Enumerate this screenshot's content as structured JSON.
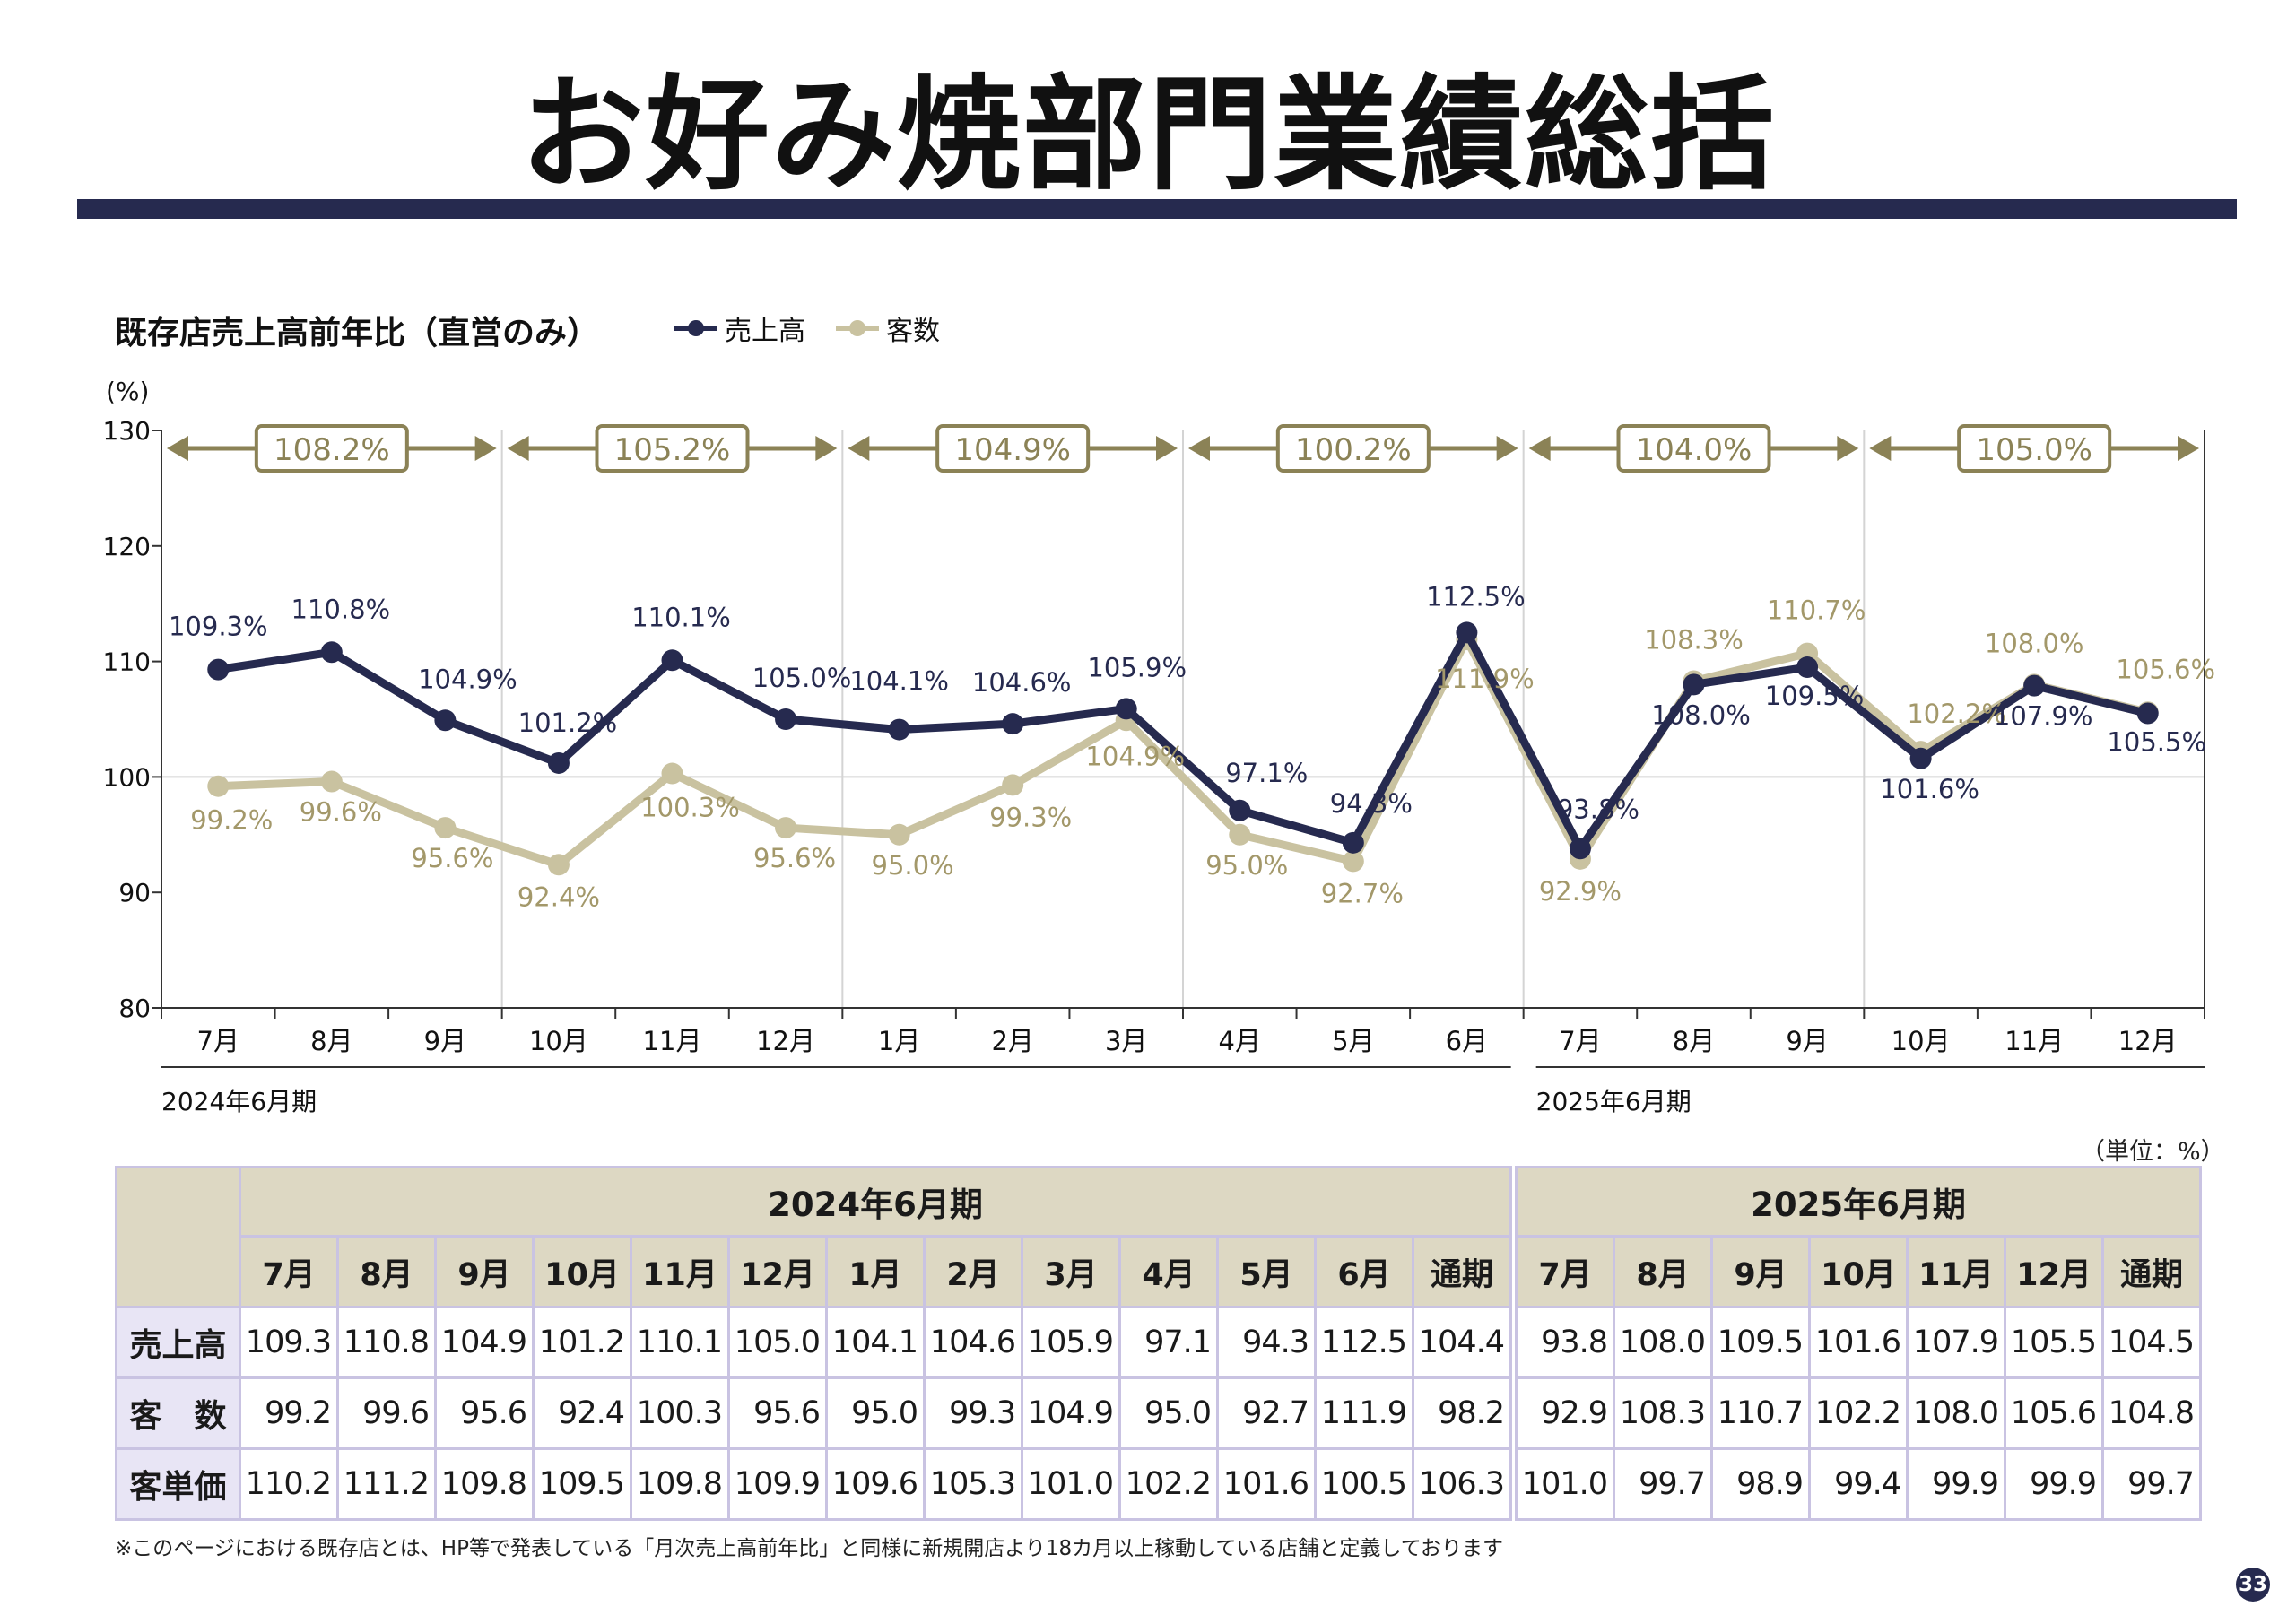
{
  "title": "お好み焼部門業績総括",
  "chart_heading": "既存店売上高前年比（直営のみ）",
  "colors": {
    "sales": "#262a4f",
    "customers": "#c9c2a0",
    "annotation": "#8b8256",
    "rule": "#262a4f"
  },
  "legend": [
    {
      "name": "売上高",
      "color": "#262a4f"
    },
    {
      "name": "客数",
      "color": "#c9c2a0"
    }
  ],
  "chart_data": {
    "type": "line",
    "ylabel": "(%)",
    "ylim": [
      80,
      130
    ],
    "yticks": [
      80,
      90,
      100,
      110,
      120,
      130
    ],
    "categories": [
      "7月",
      "8月",
      "9月",
      "10月",
      "11月",
      "12月",
      "1月",
      "2月",
      "3月",
      "4月",
      "5月",
      "6月",
      "7月",
      "8月",
      "9月",
      "10月",
      "11月",
      "12月"
    ],
    "series": [
      {
        "name": "売上高",
        "color": "#262a4f",
        "values": [
          109.3,
          110.8,
          104.9,
          101.2,
          110.1,
          105.0,
          104.1,
          104.6,
          105.9,
          97.1,
          94.3,
          112.5,
          93.8,
          108.0,
          109.5,
          101.6,
          107.9,
          105.5
        ],
        "labels": [
          "109.3%",
          "110.8%",
          "104.9%",
          "101.2%",
          "110.1%",
          "105.0%",
          "104.1%",
          "104.6%",
          "105.9%",
          "97.1%",
          "94.3%",
          "112.5%",
          "93.8%",
          "108.0%",
          "109.5%",
          "101.6%",
          "107.9%",
          "105.5%"
        ]
      },
      {
        "name": "客数",
        "color": "#c9c2a0",
        "values": [
          99.2,
          99.6,
          95.6,
          92.4,
          100.3,
          95.6,
          95.0,
          99.3,
          104.9,
          95.0,
          92.7,
          111.9,
          92.9,
          108.3,
          110.7,
          102.2,
          108.0,
          105.6
        ],
        "labels": [
          "99.2%",
          "99.6%",
          "95.6%",
          "92.4%",
          "100.3%",
          "95.6%",
          "95.0%",
          "99.3%",
          "104.9%",
          "95.0%",
          "92.7%",
          "111.9%",
          "92.9%",
          "108.3%",
          "110.7%",
          "102.2%",
          "108.0%",
          "105.6%"
        ]
      }
    ],
    "quarter_annotations": [
      {
        "label": "108.2%",
        "from": 0,
        "to": 2
      },
      {
        "label": "105.2%",
        "from": 3,
        "to": 5
      },
      {
        "label": "104.9%",
        "from": 6,
        "to": 8
      },
      {
        "label": "100.2%",
        "from": 9,
        "to": 11
      },
      {
        "label": "104.0%",
        "from": 12,
        "to": 14
      },
      {
        "label": "105.0%",
        "from": 15,
        "to": 17
      }
    ],
    "period_labels": [
      {
        "label": "2024年6月期",
        "from": 0,
        "to": 11
      },
      {
        "label": "2025年6月期",
        "from": 12,
        "to": 17
      }
    ]
  },
  "table": {
    "unit": "（単位：%）",
    "periods": [
      {
        "title": "2024年6月期",
        "months": [
          "7月",
          "8月",
          "9月",
          "10月",
          "11月",
          "12月",
          "1月",
          "2月",
          "3月",
          "4月",
          "5月",
          "6月",
          "通期"
        ],
        "rows": [
          [
            "109.3",
            "110.8",
            "104.9",
            "101.2",
            "110.1",
            "105.0",
            "104.1",
            "104.6",
            "105.9",
            "97.1",
            "94.3",
            "112.5",
            "104.4"
          ],
          [
            "99.2",
            "99.6",
            "95.6",
            "92.4",
            "100.3",
            "95.6",
            "95.0",
            "99.3",
            "104.9",
            "95.0",
            "92.7",
            "111.9",
            "98.2"
          ],
          [
            "110.2",
            "111.2",
            "109.8",
            "109.5",
            "109.8",
            "109.9",
            "109.6",
            "105.3",
            "101.0",
            "102.2",
            "101.6",
            "100.5",
            "106.3"
          ]
        ]
      },
      {
        "title": "2025年6月期",
        "months": [
          "7月",
          "8月",
          "9月",
          "10月",
          "11月",
          "12月",
          "通期"
        ],
        "rows": [
          [
            "93.8",
            "108.0",
            "109.5",
            "101.6",
            "107.9",
            "105.5",
            "104.5"
          ],
          [
            "92.9",
            "108.3",
            "110.7",
            "102.2",
            "108.0",
            "105.6",
            "104.8"
          ],
          [
            "101.0",
            "99.7",
            "98.9",
            "99.4",
            "99.9",
            "99.9",
            "99.7"
          ]
        ]
      }
    ],
    "row_labels": [
      "売上高",
      "客　数",
      "客単価"
    ]
  },
  "footnote": "※このページにおける既存店とは、HP等で発表している「月次売上高前年比」と同様に新規開店より18カ月以上稼動している店舗と定義しております",
  "page_number": "33"
}
